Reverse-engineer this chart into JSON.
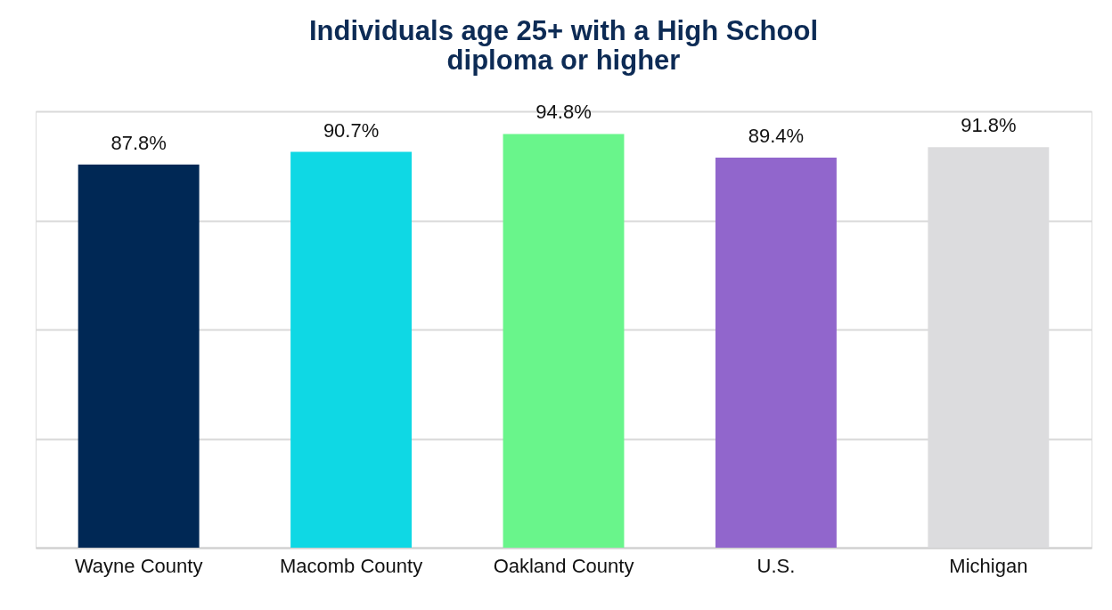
{
  "chart_data": {
    "type": "bar",
    "title": "Individuals age 25+ with a High School diploma or higher",
    "categories": [
      "Wayne County",
      "Macomb County",
      "Oakland County",
      "U.S.",
      "Michigan"
    ],
    "values": [
      87.8,
      90.7,
      94.8,
      89.4,
      91.8
    ],
    "colors": [
      "#002855",
      "#0fd8e4",
      "#69f58b",
      "#9166cc",
      "#dcdcde"
    ],
    "value_labels": [
      "87.8%",
      "90.7%",
      "94.8%",
      "89.4%",
      "91.8%"
    ],
    "ylim": [
      0,
      100
    ],
    "yticks": [
      {
        "value": 0,
        "label": null
      },
      {
        "value": 25,
        "label": null
      },
      {
        "value": 50,
        "label": null
      },
      {
        "value": 75,
        "label": null
      },
      {
        "value": 100,
        "label": null
      }
    ],
    "grid": "y",
    "tick_labels": "x"
  }
}
